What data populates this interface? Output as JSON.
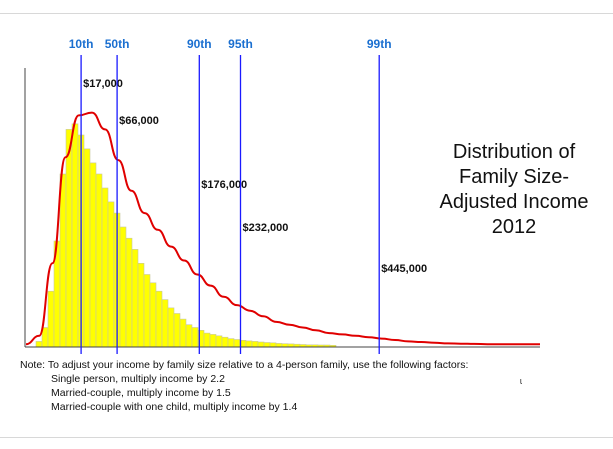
{
  "chart_data": {
    "type": "bar",
    "title_lines": [
      "Distribution of",
      "Family Size-",
      "Adjusted Income",
      "2012"
    ],
    "bars": [
      0.02,
      0.07,
      0.2,
      0.38,
      0.62,
      0.78,
      0.8,
      0.76,
      0.71,
      0.66,
      0.62,
      0.57,
      0.52,
      0.48,
      0.43,
      0.39,
      0.35,
      0.3,
      0.26,
      0.23,
      0.2,
      0.17,
      0.14,
      0.12,
      0.1,
      0.08,
      0.07,
      0.06,
      0.05,
      0.045,
      0.04,
      0.035,
      0.03,
      0.027,
      0.024,
      0.022,
      0.02,
      0.018,
      0.016,
      0.015,
      0.013,
      0.012,
      0.011,
      0.01,
      0.009,
      0.008,
      0.008,
      0.007,
      0.007,
      0.006
    ],
    "curve": [
      0.01,
      0.04,
      0.3,
      0.68,
      0.83,
      0.84,
      0.78,
      0.67,
      0.56,
      0.48,
      0.42,
      0.36,
      0.31,
      0.26,
      0.22,
      0.18,
      0.15,
      0.13,
      0.11,
      0.09,
      0.08,
      0.07,
      0.06,
      0.05,
      0.045,
      0.04,
      0.035,
      0.03,
      0.025,
      0.02,
      0.018,
      0.015,
      0.013,
      0.012,
      0.011,
      0.01,
      0.01,
      0.01,
      0.01,
      0.01
    ],
    "percentiles": [
      {
        "label": "10th",
        "value_label": "$17,000",
        "pos": 0.08
      },
      {
        "label": "50th",
        "value_label": "$66,000",
        "pos": 0.15
      },
      {
        "label": "90th",
        "value_label": "$176,000",
        "pos": 0.31
      },
      {
        "label": "95th",
        "value_label": "$232,000",
        "pos": 0.39
      },
      {
        "label": "99th",
        "value_label": "$445,000",
        "pos": 0.66
      }
    ],
    "colors": {
      "bars": "#ffff00",
      "bar_edge": "#c8c8a0",
      "curve": "#e00000",
      "lines": "#1a1aff",
      "labels": "#1a6fd0"
    }
  },
  "note": {
    "line1": "Note:  To adjust your income by family size relative to a 4-person family, use the following factors:",
    "line2": "Single person, multiply income by 2.2",
    "line3": "Married-couple, multiply income by 1.5",
    "line4": "Married-couple with one child, multiply income by 1.4"
  },
  "stray_mark": "ɩ"
}
